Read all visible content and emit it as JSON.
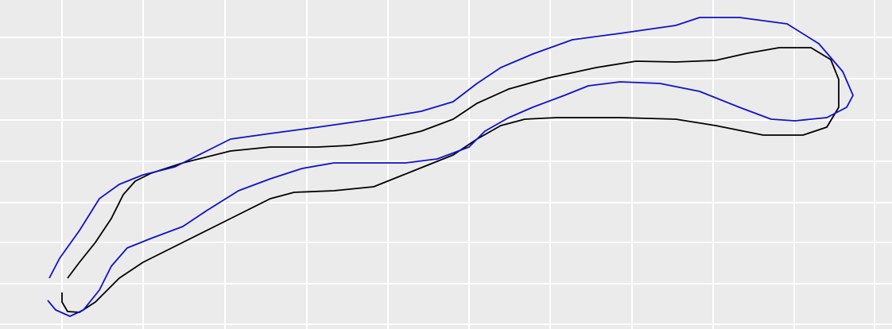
{
  "chart_data": {
    "type": "line",
    "xlim": [
      0,
      1122
    ],
    "ylim": [
      0,
      414
    ],
    "xticks": [
      78,
      180,
      283,
      386,
      488,
      590,
      692,
      795,
      897,
      999,
      1100
    ],
    "yticks": [
      6,
      57,
      109,
      159,
      211,
      263,
      315,
      367
    ],
    "grid": true,
    "series": [
      {
        "color": "#000000",
        "x": [
          85,
          100,
          120,
          140,
          155,
          170,
          190,
          230,
          290,
          340,
          400,
          440,
          480,
          530,
          570,
          600,
          640,
          690,
          750,
          800,
          850,
          900,
          940,
          980,
          1020,
          1045,
          1055,
          1055,
          1040,
          1010,
          960,
          900,
          850,
          780,
          700,
          660,
          630,
          600,
          570,
          520,
          470,
          420,
          370,
          340,
          300,
          260,
          220,
          180,
          150,
          120,
          100,
          85,
          78,
          78
        ],
        "values": [
          64,
          84,
          109,
          139,
          169,
          186,
          196,
          209,
          224,
          229,
          229,
          231,
          237,
          249,
          264,
          284,
          302,
          316,
          329,
          337,
          336,
          338,
          347,
          354,
          354,
          339,
          314,
          279,
          254,
          244,
          244,
          256,
          264,
          266,
          266,
          264,
          256,
          239,
          219,
          199,
          179,
          174,
          172,
          164,
          144,
          124,
          104,
          84,
          64,
          34,
          21,
          22,
          34,
          46
        ]
      },
      {
        "color": "#1010cc",
        "x": [
          62,
          75,
          100,
          125,
          150,
          180,
          220,
          260,
          290,
          340,
          400,
          470,
          530,
          570,
          600,
          630,
          670,
          720,
          780,
          850,
          880,
          930,
          990,
          1030,
          1060,
          1073,
          1065,
          1040,
          1000,
          970,
          930,
          880,
          830,
          780,
          740,
          710,
          670,
          640,
          610,
          590,
          550,
          510,
          470,
          420,
          380,
          340,
          300,
          260,
          230,
          190,
          160,
          140,
          125,
          105,
          88,
          70,
          60
        ],
        "values": [
          64,
          89,
          124,
          164,
          182,
          194,
          204,
          224,
          239,
          246,
          254,
          264,
          274,
          286,
          309,
          329,
          346,
          364,
          372,
          382,
          392,
          392,
          384,
          359,
          324,
          294,
          279,
          266,
          262,
          264,
          279,
          299,
          309,
          311,
          306,
          294,
          279,
          266,
          249,
          229,
          214,
          209,
          209,
          209,
          202,
          189,
          174,
          149,
          129,
          114,
          102,
          79,
          49,
          24,
          16,
          24,
          36
        ]
      }
    ]
  }
}
